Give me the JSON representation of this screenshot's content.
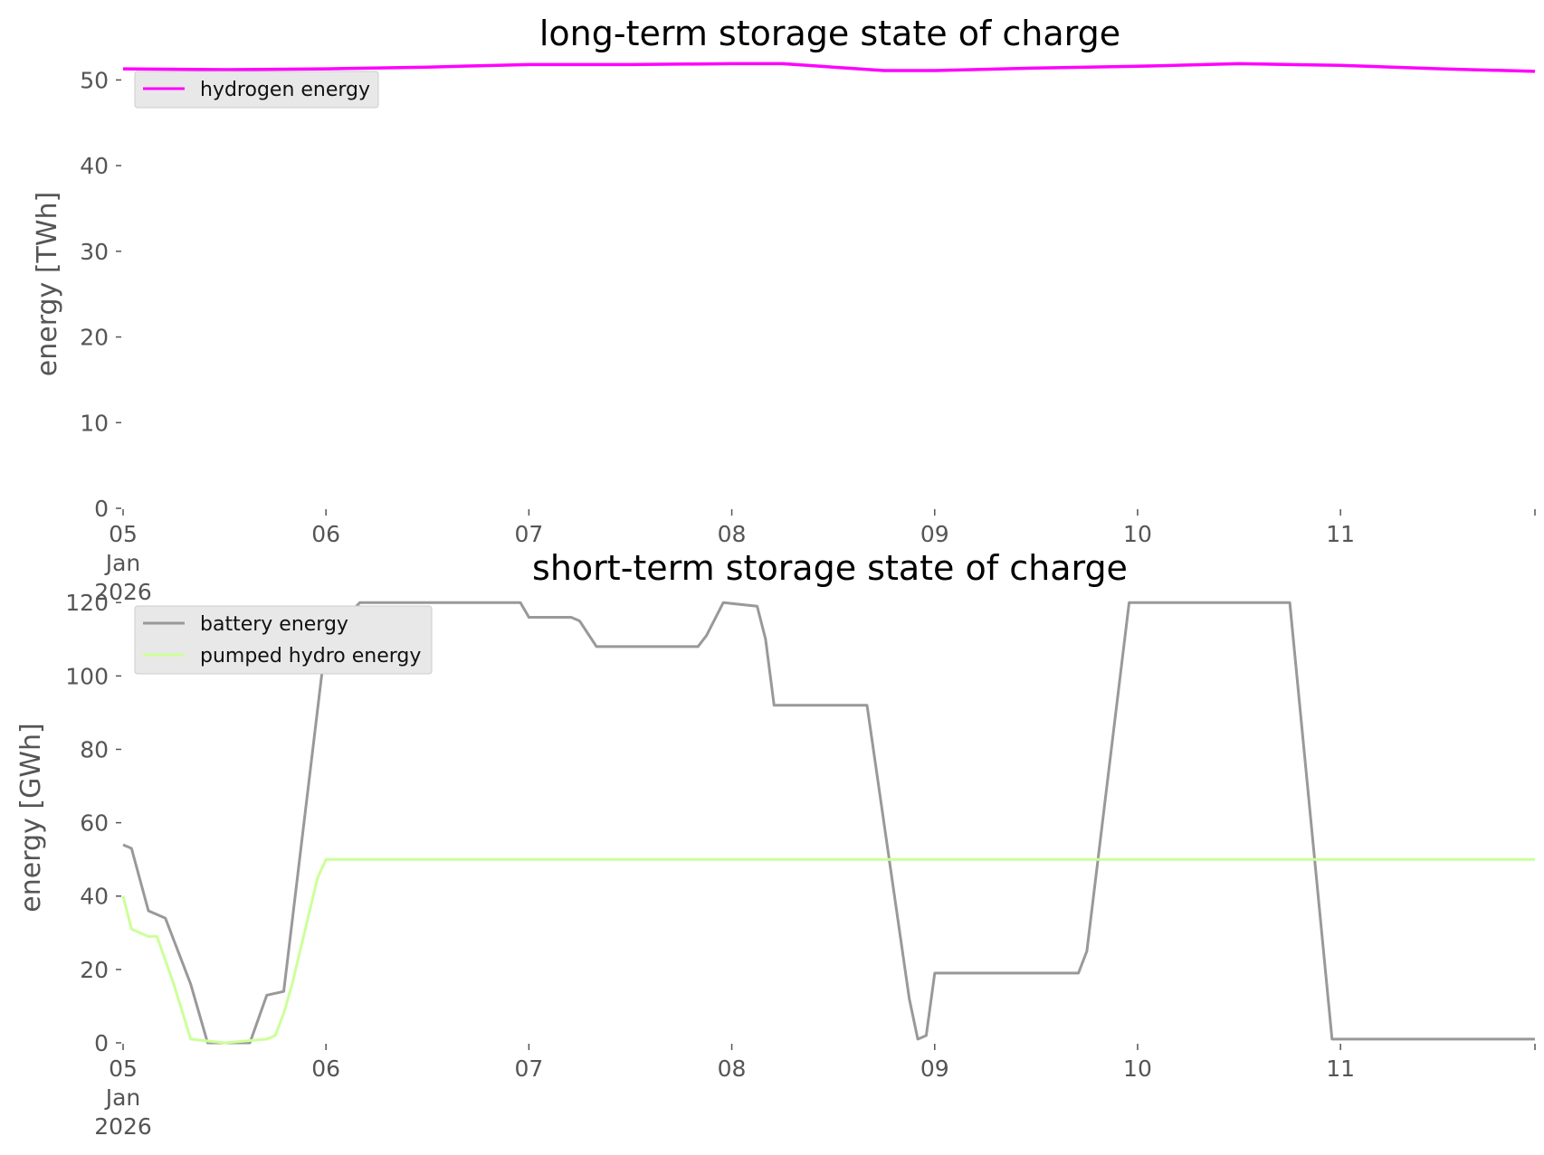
{
  "chart_data": [
    {
      "type": "line",
      "title": "long-term storage state of charge",
      "xlabel": "",
      "ylabel": "energy [TWh]",
      "x_axis_type": "date",
      "xlim": [
        "2026-01-05 00:00",
        "2026-01-11 23:00"
      ],
      "x_tick_labels": [
        "05\nJan\n2026",
        "06",
        "07",
        "08",
        "09",
        "10",
        "11"
      ],
      "x_tick_values": [
        "2026-01-05",
        "2026-01-06",
        "2026-01-07",
        "2026-01-08",
        "2026-01-09",
        "2026-01-10",
        "2026-01-11"
      ],
      "y_ticks": [
        0,
        10,
        20,
        30,
        40,
        50
      ],
      "ylim": [
        0,
        53
      ],
      "grid": false,
      "legend_position": "upper-left",
      "series": [
        {
          "name": "hydrogen energy",
          "color": "#ff00ff",
          "x": [
            "2026-01-05 00:00",
            "2026-01-05 12:00",
            "2026-01-06 00:00",
            "2026-01-06 12:00",
            "2026-01-07 00:00",
            "2026-01-07 12:00",
            "2026-01-08 00:00",
            "2026-01-08 06:00",
            "2026-01-08 12:00",
            "2026-01-08 18:00",
            "2026-01-09 00:00",
            "2026-01-09 12:00",
            "2026-01-10 00:00",
            "2026-01-10 12:00",
            "2026-01-10 18:00",
            "2026-01-11 00:00",
            "2026-01-11 12:00",
            "2026-01-11 23:00"
          ],
          "y": [
            51.3,
            51.2,
            51.3,
            51.5,
            51.8,
            51.8,
            51.9,
            51.9,
            51.5,
            51.1,
            51.1,
            51.4,
            51.6,
            51.9,
            51.8,
            51.7,
            51.3,
            51.0
          ]
        }
      ]
    },
    {
      "type": "line",
      "title": "short-term storage state of charge",
      "xlabel": "",
      "ylabel": "energy [GWh]",
      "x_axis_type": "date",
      "xlim": [
        "2026-01-05 00:00",
        "2026-01-11 23:00"
      ],
      "x_tick_labels": [
        "05\nJan\n2026",
        "06",
        "07",
        "08",
        "09",
        "10",
        "11"
      ],
      "x_tick_values": [
        "2026-01-05",
        "2026-01-06",
        "2026-01-07",
        "2026-01-08",
        "2026-01-09",
        "2026-01-10",
        "2026-01-11"
      ],
      "y_ticks": [
        0,
        20,
        40,
        60,
        80,
        100,
        120
      ],
      "ylim": [
        0,
        124
      ],
      "grid": false,
      "legend_position": "upper-left",
      "series": [
        {
          "name": "battery energy",
          "color": "#999999",
          "x": [
            "2026-01-05 00:00",
            "2026-01-05 01:00",
            "2026-01-05 03:00",
            "2026-01-05 05:00",
            "2026-01-05 06:00",
            "2026-01-05 08:00",
            "2026-01-05 10:00",
            "2026-01-05 12:00",
            "2026-01-05 15:00",
            "2026-01-05 17:00",
            "2026-01-05 19:00",
            "2026-01-06 00:00",
            "2026-01-06 04:00",
            "2026-01-06 23:00",
            "2026-01-07 00:00",
            "2026-01-07 05:00",
            "2026-01-07 06:00",
            "2026-01-07 08:00",
            "2026-01-07 20:00",
            "2026-01-07 21:00",
            "2026-01-07 23:00",
            "2026-01-08 03:00",
            "2026-01-08 04:00",
            "2026-01-08 05:00",
            "2026-01-08 06:00",
            "2026-01-08 16:00",
            "2026-01-08 21:00",
            "2026-01-08 22:00",
            "2026-01-08 23:00",
            "2026-01-09 00:00",
            "2026-01-09 17:00",
            "2026-01-09 18:00",
            "2026-01-09 23:00",
            "2026-01-10 18:00",
            "2026-01-10 23:00",
            "2026-01-11 23:00"
          ],
          "y": [
            54,
            53,
            36,
            34,
            28,
            16,
            0,
            0,
            0,
            13,
            14,
            110,
            120,
            120,
            116,
            116,
            115,
            108,
            108,
            111,
            120,
            119,
            110,
            92,
            92,
            92,
            12,
            1,
            2,
            19,
            19,
            25,
            120,
            120,
            1,
            1
          ]
        },
        {
          "name": "pumped hydro energy",
          "color": "#ccff99",
          "x": [
            "2026-01-05 00:00",
            "2026-01-05 01:00",
            "2026-01-05 03:00",
            "2026-01-05 04:00",
            "2026-01-05 06:00",
            "2026-01-05 08:00",
            "2026-01-05 12:00",
            "2026-01-05 17:00",
            "2026-01-05 18:00",
            "2026-01-05 19:00",
            "2026-01-05 20:00",
            "2026-01-05 23:00",
            "2026-01-06 00:00",
            "2026-01-11 23:00"
          ],
          "y": [
            40,
            31,
            29,
            29,
            16,
            1,
            0,
            1,
            2,
            8,
            16,
            45,
            50,
            50
          ]
        }
      ]
    }
  ]
}
